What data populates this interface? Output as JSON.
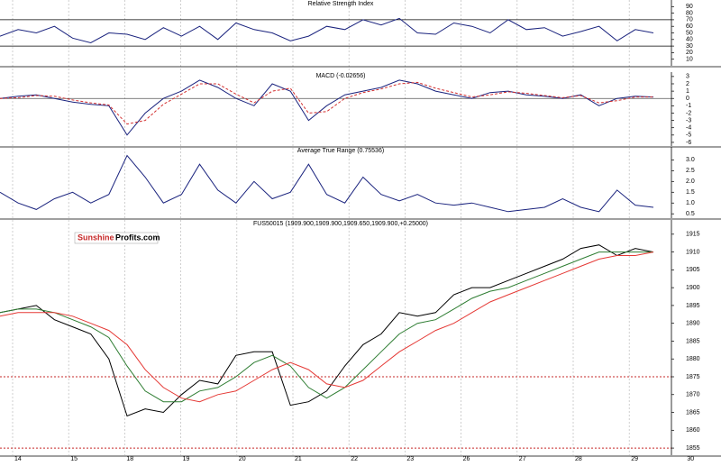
{
  "chart_data": [
    {
      "type": "line",
      "title": "Relative Strength Index",
      "ylim": [
        0,
        100
      ],
      "yticks": [
        90,
        80,
        70,
        60,
        50,
        40,
        30,
        20,
        10
      ],
      "levels": [
        70,
        30
      ],
      "level_color": "#000000",
      "series": [
        {
          "name": "RSI",
          "color": "#1a237e",
          "values": [
            45,
            55,
            50,
            60,
            42,
            35,
            50,
            48,
            40,
            58,
            45,
            60,
            40,
            65,
            55,
            50,
            38,
            45,
            60,
            55,
            70,
            62,
            72,
            50,
            48,
            65,
            60,
            50,
            70,
            55,
            58,
            45,
            52,
            60,
            38,
            55,
            50
          ]
        }
      ]
    },
    {
      "type": "line",
      "title": "MACD (-0.02656)",
      "ylim": [
        -6.5,
        3.6
      ],
      "yticks": [
        3,
        2,
        1,
        0,
        -1,
        -2,
        -3,
        -4,
        -5,
        -6
      ],
      "levels": [
        0
      ],
      "level_color": "#555555",
      "series": [
        {
          "name": "MACD",
          "color": "#1a237e",
          "values": [
            0,
            0.3,
            0.5,
            0,
            -0.5,
            -0.8,
            -1,
            -5,
            -2,
            0,
            1,
            2.5,
            1.5,
            0,
            -1,
            2,
            1,
            -3,
            -1,
            0.5,
            1,
            1.5,
            2.5,
            2,
            1,
            0.5,
            0,
            0.8,
            1,
            0.5,
            0.3,
            0,
            0.5,
            -1,
            0,
            0.3,
            0.2
          ]
        },
        {
          "name": "Signal",
          "color": "#d32f2f",
          "dashed": true,
          "values": [
            0,
            0.1,
            0.4,
            0.3,
            -0.2,
            -0.6,
            -0.9,
            -3.5,
            -3,
            -0.8,
            0.6,
            2,
            2,
            0.6,
            -0.6,
            1,
            1.4,
            -2,
            -1.8,
            0,
            0.8,
            1.3,
            2,
            2.2,
            1.4,
            0.8,
            0.2,
            0.5,
            0.9,
            0.7,
            0.4,
            0.1,
            0.4,
            -0.6,
            -0.3,
            0.2,
            0.2
          ]
        }
      ]
    },
    {
      "type": "line",
      "title": "Average True Range (0.75536)",
      "ylim": [
        0.3,
        3.6
      ],
      "yticks": [
        {
          "value": 3,
          "label": "3.0"
        },
        2.5,
        {
          "value": 2,
          "label": "2.0"
        },
        1.5,
        {
          "value": 1,
          "label": "1.0"
        },
        0.5
      ],
      "series": [
        {
          "name": "ATR",
          "color": "#1a237e",
          "values": [
            1.5,
            1.0,
            0.7,
            1.2,
            1.5,
            1.0,
            1.4,
            3.2,
            2.2,
            1.0,
            1.4,
            2.8,
            1.6,
            1.0,
            2.0,
            1.2,
            1.5,
            2.8,
            1.4,
            1.0,
            2.2,
            1.4,
            1.1,
            1.4,
            1.0,
            0.9,
            1.0,
            0.8,
            0.6,
            0.7,
            0.8,
            1.2,
            0.8,
            0.6,
            1.6,
            0.9,
            0.8
          ]
        }
      ]
    },
    {
      "type": "line",
      "title": "FUS50015 (1909.900,1909.900,1909.650,1909.900,+0.25000)",
      "ylim": [
        1853,
        1919
      ],
      "yticks": [
        1915,
        1910,
        1905,
        1900,
        1895,
        1890,
        1885,
        1880,
        1875,
        1870,
        1865,
        1860,
        1855
      ],
      "levels": [
        1875,
        1855
      ],
      "level_color": "#c62828",
      "level_dotted": true,
      "logo": {
        "part1": "Sunshine",
        "part2": "Profits.com"
      },
      "x_labels": [
        "14",
        "15",
        "18",
        "19",
        "20",
        "21",
        "22",
        "23",
        "26",
        "27",
        "28",
        "29",
        "30"
      ],
      "series": [
        {
          "name": "Price",
          "color": "#000000",
          "values": [
            1893,
            1894,
            1895,
            1891,
            1889,
            1887,
            1880,
            1864,
            1866,
            1865,
            1870,
            1874,
            1873,
            1881,
            1882,
            1882,
            1867,
            1868,
            1871,
            1878,
            1884,
            1887,
            1893,
            1892,
            1893,
            1898,
            1900,
            1900,
            1902,
            1904,
            1906,
            1908,
            1911,
            1912,
            1909,
            1911,
            1910
          ]
        },
        {
          "name": "MA fast",
          "color": "#2e7d32",
          "values": [
            1893,
            1894,
            1894,
            1893,
            1891,
            1889,
            1886,
            1878,
            1871,
            1868,
            1868,
            1871,
            1872,
            1875,
            1879,
            1881,
            1878,
            1872,
            1869,
            1872,
            1877,
            1882,
            1887,
            1890,
            1891,
            1894,
            1897,
            1899,
            1900,
            1902,
            1904,
            1906,
            1908,
            1910,
            1910,
            1910,
            1910
          ]
        },
        {
          "name": "MA slow",
          "color": "#e53935",
          "values": [
            1892,
            1893,
            1893,
            1893,
            1892,
            1890,
            1888,
            1884,
            1877,
            1872,
            1869,
            1868,
            1870,
            1871,
            1874,
            1877,
            1879,
            1877,
            1873,
            1872,
            1874,
            1878,
            1882,
            1885,
            1888,
            1890,
            1893,
            1896,
            1898,
            1900,
            1902,
            1904,
            1906,
            1908,
            1909,
            1909,
            1910
          ]
        }
      ]
    }
  ]
}
